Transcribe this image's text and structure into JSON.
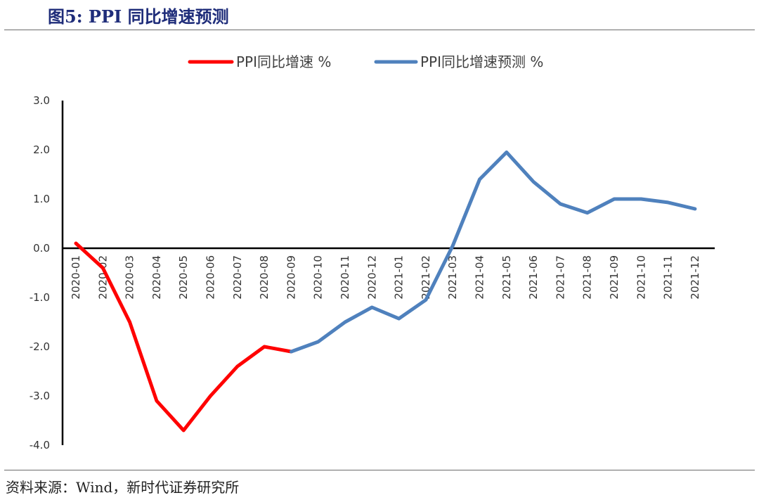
{
  "figure": {
    "title": "图5:  PPI 同比增速预测",
    "source": "资料来源：Wind，新时代证券研究所"
  },
  "chart_data": {
    "type": "line",
    "title": "",
    "xlabel": "",
    "ylabel": "",
    "ylim": [
      -4.0,
      3.0
    ],
    "yticks": [
      "3.0",
      "2.0",
      "1.0",
      "0.0",
      "-1.0",
      "-2.0",
      "-3.0",
      "-4.0"
    ],
    "ytick_values": [
      3,
      2,
      1,
      0,
      -1,
      -2,
      -3,
      -4
    ],
    "categories": [
      "2020-01",
      "2020-02",
      "2020-03",
      "2020-04",
      "2020-05",
      "2020-06",
      "2020-07",
      "2020-08",
      "2020-09",
      "2020-10",
      "2020-11",
      "2020-12",
      "2021-01",
      "2021-02",
      "2021-03",
      "2021-04",
      "2021-05",
      "2021-06",
      "2021-07",
      "2021-08",
      "2021-09",
      "2021-10",
      "2021-11",
      "2021-12"
    ],
    "grid": false,
    "legend": "top-center",
    "series": [
      {
        "name": "PPI同比增速 %",
        "color": "#ff0000",
        "values": [
          0.1,
          -0.4,
          -1.5,
          -3.1,
          -3.7,
          -3.0,
          -2.4,
          -2.0,
          -2.1,
          null,
          null,
          null,
          null,
          null,
          null,
          null,
          null,
          null,
          null,
          null,
          null,
          null,
          null,
          null
        ]
      },
      {
        "name": "PPI同比增速预测 %",
        "color": "#4f81bd",
        "values": [
          null,
          null,
          null,
          null,
          null,
          null,
          null,
          null,
          -2.1,
          -1.9,
          -1.5,
          -1.2,
          -1.43,
          -1.05,
          0.05,
          1.4,
          1.95,
          1.35,
          0.9,
          0.72,
          1.0,
          1.0,
          0.93,
          0.8
        ]
      }
    ]
  }
}
